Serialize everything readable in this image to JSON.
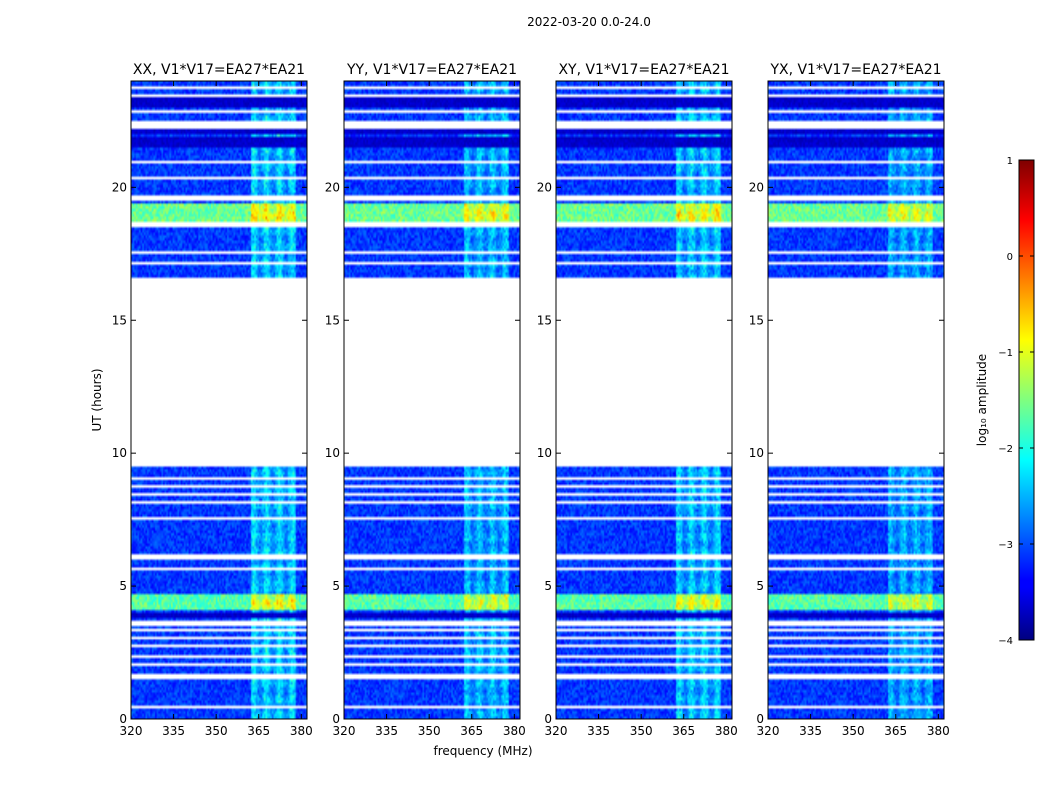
{
  "chart_data": {
    "type": "heatmap",
    "suptitle": "2022-03-20 0.0-24.0",
    "xlabel": "frequency (MHz)",
    "ylabel": "UT (hours)",
    "xlim": [
      320,
      382
    ],
    "ylim": [
      0,
      24
    ],
    "xticks": [
      320,
      335,
      350,
      365,
      380
    ],
    "yticks": [
      0,
      5,
      10,
      15,
      20
    ],
    "panels": [
      {
        "title": "XX, V1*V17=EA27*EA21",
        "rfi_strength": 1.0
      },
      {
        "title": "YY, V1*V17=EA27*EA21",
        "rfi_strength": 0.85
      },
      {
        "title": "XY, V1*V17=EA27*EA21",
        "rfi_strength": 0.95
      },
      {
        "title": "YX, V1*V17=EA27*EA21",
        "rfi_strength": 0.75
      }
    ],
    "data_gap_hours": [
      9.5,
      16.6
    ],
    "missing_rows_hours": [
      [
        0.45,
        0.55
      ],
      [
        1.55,
        1.75
      ],
      [
        2.05,
        2.12
      ],
      [
        2.35,
        2.42
      ],
      [
        2.7,
        2.78
      ],
      [
        3.0,
        3.08
      ],
      [
        3.3,
        3.38
      ],
      [
        3.55,
        3.65
      ],
      [
        5.55,
        5.7
      ],
      [
        6.05,
        6.15
      ],
      [
        6.35,
        6.45
      ],
      [
        7.55,
        7.62
      ],
      [
        7.85,
        7.92
      ],
      [
        8.15,
        8.22
      ],
      [
        8.45,
        8.52
      ],
      [
        8.75,
        8.82
      ],
      [
        9.05,
        9.12
      ],
      [
        17.15,
        17.25
      ],
      [
        17.5,
        17.58
      ],
      [
        18.55,
        18.7
      ],
      [
        19.55,
        19.7
      ],
      [
        20.3,
        20.45
      ],
      [
        20.9,
        20.98
      ],
      [
        22.2,
        22.5
      ],
      [
        22.85,
        22.95
      ],
      [
        23.2,
        23.25
      ],
      [
        23.45,
        23.55
      ],
      [
        23.75,
        23.85
      ]
    ],
    "dark_rows_hours": [
      [
        3.85,
        3.95
      ],
      [
        21.5,
        21.9
      ],
      [
        22.0,
        22.2
      ],
      [
        23.0,
        23.2
      ],
      [
        23.25,
        23.45
      ]
    ],
    "bright_bands_hours": [
      {
        "range": [
          4.05,
          4.75
        ],
        "level": -1.7
      },
      {
        "range": [
          18.7,
          19.4
        ],
        "level": -1.6
      }
    ],
    "background_log_amplitude": -3.1,
    "rfi_region_mhz": [
      362,
      378
    ],
    "colorbar": {
      "label": "log₁₀ amplitude",
      "vmin": -4,
      "vmax": 1,
      "ticks": [
        1,
        0,
        -1,
        -2,
        -3,
        -4
      ],
      "tick_labels": [
        "1",
        "0",
        "−1",
        "−2",
        "−3",
        "−4"
      ],
      "colormap": "jet"
    }
  }
}
